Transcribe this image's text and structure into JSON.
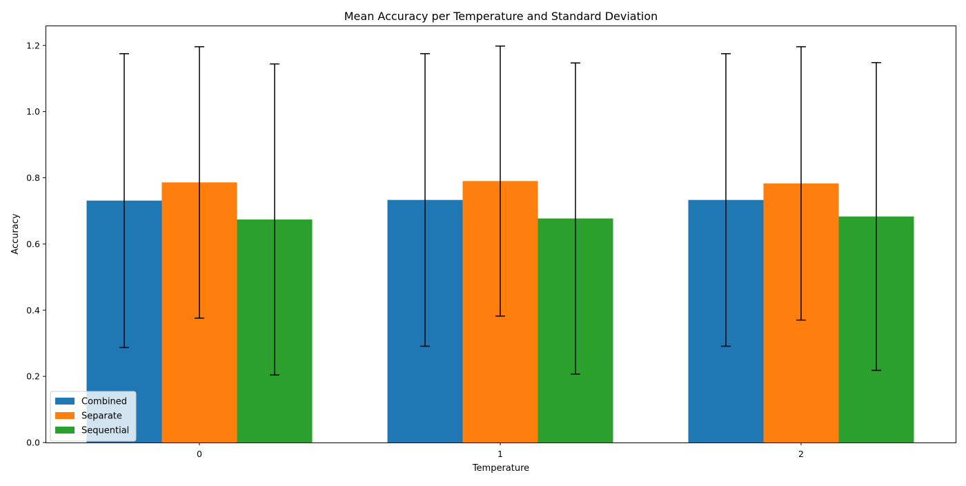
{
  "chart_data": {
    "type": "bar",
    "title": "Mean Accuracy per Temperature and Standard Deviation",
    "xlabel": "Temperature",
    "ylabel": "Accuracy",
    "categories": [
      "0",
      "1",
      "2"
    ],
    "ylim": [
      0,
      1.26
    ],
    "yticks": [
      "0.0",
      "0.2",
      "0.4",
      "0.6",
      "0.8",
      "1.0",
      "1.2"
    ],
    "grid": false,
    "legend_position": "lower-left",
    "series": [
      {
        "name": "Combined",
        "color": "#1f77b4",
        "values": [
          0.731,
          0.733,
          0.733
        ],
        "std": [
          0.444,
          0.442,
          0.442
        ]
      },
      {
        "name": "Separate",
        "color": "#ff7f0e",
        "values": [
          0.786,
          0.79,
          0.783
        ],
        "std": [
          0.41,
          0.408,
          0.413
        ]
      },
      {
        "name": "Sequential",
        "color": "#2ca02c",
        "values": [
          0.674,
          0.677,
          0.683
        ],
        "std": [
          0.47,
          0.47,
          0.465
        ]
      }
    ]
  }
}
